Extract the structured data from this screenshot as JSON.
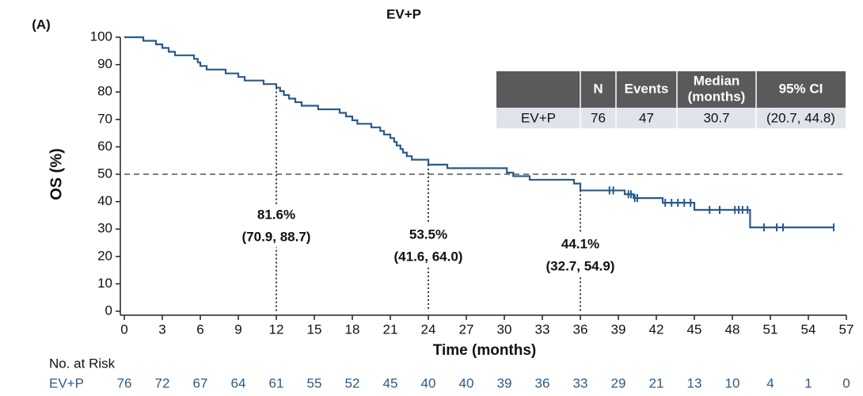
{
  "chart_data": {
    "type": "step",
    "panel": "(A)",
    "title": "EV+P",
    "y_label": "OS (%)",
    "x_label": "Time (months)",
    "xlim": [
      0,
      57
    ],
    "xticks": [
      0,
      3,
      6,
      9,
      12,
      15,
      18,
      21,
      24,
      27,
      30,
      33,
      36,
      39,
      42,
      45,
      48,
      51,
      54,
      57
    ],
    "ylim": [
      0,
      100
    ],
    "yticks": [
      0,
      10,
      20,
      30,
      40,
      50,
      60,
      70,
      80,
      90,
      100
    ],
    "reference_line": 50,
    "series": [
      {
        "name": "EV+P",
        "color": "#2a5a8c",
        "x": [
          0,
          1.5,
          2.5,
          3,
          3.5,
          4,
          5.5,
          5.8,
          6,
          6.5,
          8,
          9,
          9.5,
          11,
          12,
          12.3,
          12.6,
          13,
          13.5,
          14,
          15.3,
          17,
          17.5,
          18,
          18.4,
          19.5,
          20.2,
          20.5,
          21,
          21.3,
          21.5,
          21.8,
          22,
          22.3,
          22.7,
          24,
          25.5,
          30.2,
          30.7,
          32,
          35.5,
          36,
          39.5,
          40.2,
          42.5,
          45,
          49.4,
          56
        ],
        "values": [
          100,
          98.7,
          97.4,
          96.1,
          94.7,
          93.4,
          92.1,
          90.8,
          89.5,
          88.2,
          86.8,
          85.5,
          84.2,
          82.9,
          81.6,
          80.3,
          78.9,
          77.6,
          76.3,
          75,
          73.7,
          72.4,
          71.1,
          69.7,
          68.4,
          67.1,
          65.8,
          64.5,
          63.2,
          61.8,
          60.5,
          59.2,
          57.9,
          56.6,
          55.3,
          53.5,
          52.2,
          50.6,
          49.3,
          48,
          46.6,
          44.1,
          42.7,
          41.3,
          39.6,
          37,
          30.6,
          30.6
        ],
        "censored_x": [
          38.3,
          38.6,
          39.8,
          40,
          40.3,
          40.5,
          42.7,
          43.2,
          43.7,
          44.2,
          44.7,
          46.2,
          47,
          48.2,
          48.5,
          48.8,
          49.2,
          50.5,
          51.5,
          52,
          56
        ],
        "censored_values": [
          44.1,
          44.1,
          42.7,
          42.7,
          41.3,
          41.3,
          39.6,
          39.6,
          39.6,
          39.6,
          39.6,
          37,
          37,
          37,
          37,
          37,
          37,
          30.6,
          30.6,
          30.6,
          30.6
        ]
      }
    ],
    "annotations": [
      {
        "x": 12,
        "value": 81.6,
        "label": "81.6%",
        "ci": "(70.9, 88.7)"
      },
      {
        "x": 24,
        "value": 53.5,
        "label": "53.5%",
        "ci": "(41.6, 64.0)"
      },
      {
        "x": 36,
        "value": 44.1,
        "label": "44.1%",
        "ci": "(32.7, 54.9)"
      }
    ],
    "summary_table": {
      "header": [
        "N",
        "Events",
        "Median",
        "(months)",
        "95% CI"
      ],
      "row": [
        "EV+P",
        "76",
        "47",
        "30.7",
        "(20.7, 44.8)"
      ]
    },
    "at_risk": {
      "title": "No. at Risk",
      "label": "EV+P",
      "values": [
        76,
        72,
        67,
        64,
        61,
        55,
        52,
        45,
        40,
        40,
        39,
        36,
        33,
        29,
        21,
        13,
        10,
        4,
        1,
        0
      ]
    }
  }
}
